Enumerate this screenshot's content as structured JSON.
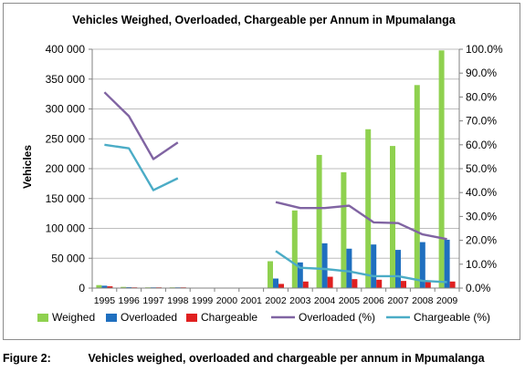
{
  "chart_data": {
    "type": "bar",
    "title": "Vehicles Weighed, Overloaded, Chargeable per Annum in Mpumalanga",
    "ylabel": "Vehicles",
    "xlabel": "",
    "categories": [
      "1995",
      "1996",
      "1997",
      "1998",
      "1999",
      "2000",
      "2001",
      "2002",
      "2003",
      "2004",
      "2005",
      "2006",
      "2007",
      "2008",
      "2009"
    ],
    "ylim": [
      0,
      400000
    ],
    "yticks": [
      "0",
      "50 000",
      "100 000",
      "150 000",
      "200 000",
      "250 000",
      "300 000",
      "350 000",
      "400 000"
    ],
    "y2lim": [
      0,
      1.0
    ],
    "y2ticks": [
      "0.0%",
      "10.0%",
      "20.0%",
      "30.0%",
      "40.0%",
      "50.0%",
      "60.0%",
      "70.0%",
      "80.0%",
      "90.0%",
      "100.0%"
    ],
    "grid": true,
    "legend_position": "bottom",
    "bar_series": [
      {
        "name": "Weighed",
        "color": "#8fd14f",
        "values": [
          5000,
          2000,
          500,
          500,
          0,
          0,
          0,
          45000,
          130000,
          223000,
          194000,
          266000,
          238000,
          340000,
          398000
        ]
      },
      {
        "name": "Overloaded",
        "color": "#1f6fbf",
        "values": [
          4000,
          1500,
          200,
          200,
          0,
          0,
          0,
          16000,
          43000,
          75000,
          66000,
          73000,
          64000,
          77000,
          81000
        ]
      },
      {
        "name": "Chargeable",
        "color": "#e02020",
        "values": [
          3000,
          1000,
          100,
          100,
          0,
          0,
          0,
          7000,
          11000,
          19000,
          15000,
          14000,
          12000,
          11000,
          11000
        ]
      }
    ],
    "line_series": [
      {
        "name": "Overloaded (%)",
        "color": "#8064a2",
        "values": [
          0.82,
          0.72,
          0.54,
          0.61,
          null,
          null,
          null,
          0.36,
          0.335,
          0.335,
          0.345,
          0.275,
          0.272,
          0.225,
          0.205
        ]
      },
      {
        "name": "Chargeable (%)",
        "color": "#4bacc6",
        "values": [
          0.6,
          0.585,
          0.41,
          0.46,
          null,
          null,
          null,
          0.155,
          0.085,
          0.08,
          0.07,
          0.05,
          0.05,
          0.03,
          0.025
        ]
      }
    ]
  },
  "caption": {
    "label": "Figure 2:",
    "text": "Vehicles weighed, overloaded and chargeable per annum in Mpumalanga"
  }
}
